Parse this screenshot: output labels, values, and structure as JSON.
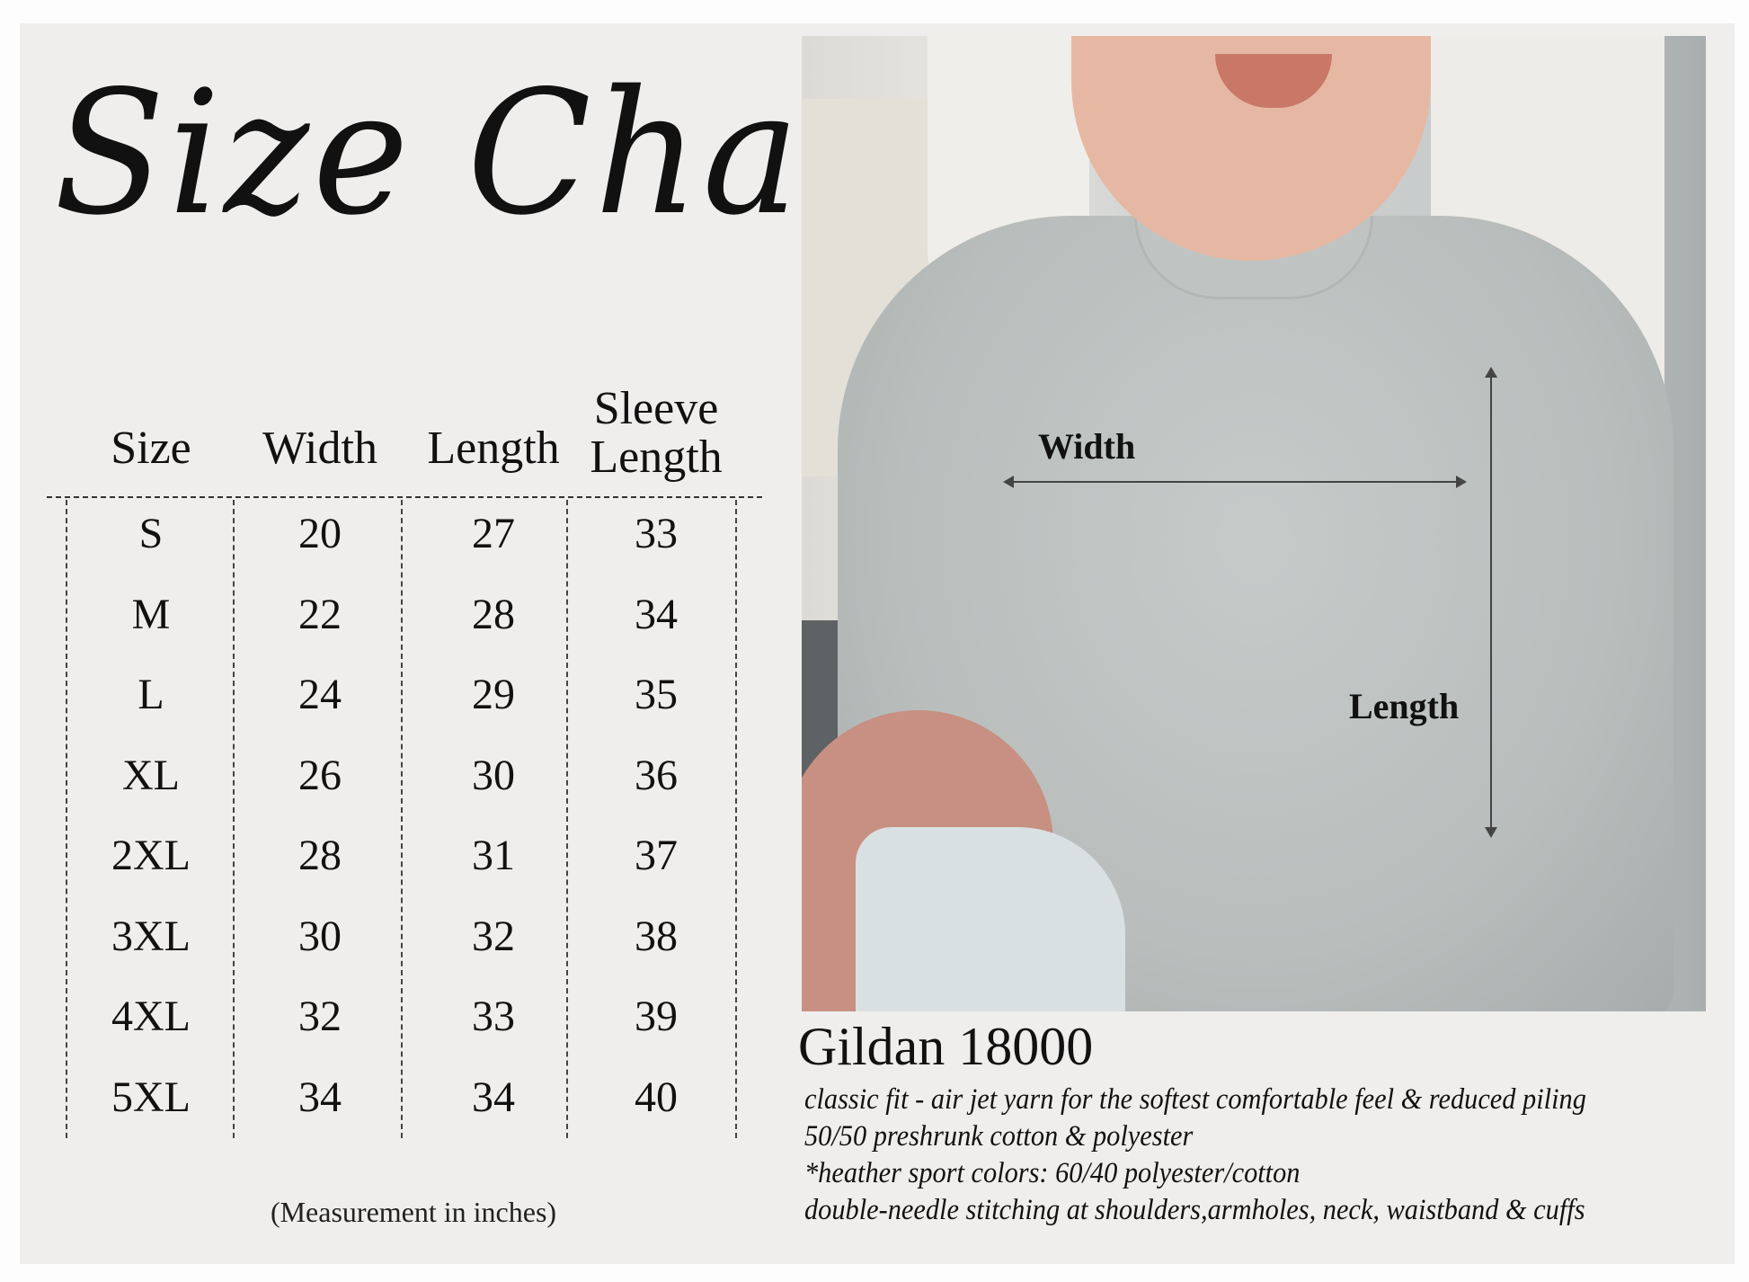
{
  "title": "Size Chart",
  "table": {
    "headers": [
      "Size",
      "Width",
      "Length",
      "Sleeve Length"
    ],
    "header_sleeve_top": "Sleeve",
    "header_sleeve_bottom": "Length",
    "rows": [
      [
        "S",
        "20",
        "27",
        "33"
      ],
      [
        "M",
        "22",
        "28",
        "34"
      ],
      [
        "L",
        "24",
        "29",
        "35"
      ],
      [
        "XL",
        "26",
        "30",
        "36"
      ],
      [
        "2XL",
        "28",
        "31",
        "37"
      ],
      [
        "3XL",
        "30",
        "32",
        "38"
      ],
      [
        "4XL",
        "32",
        "33",
        "39"
      ],
      [
        "5XL",
        "34",
        "34",
        "40"
      ]
    ]
  },
  "note": "(Measurement in inches)",
  "photo": {
    "width_label": "Width",
    "length_label": "Length"
  },
  "product": {
    "model": "Gildan 18000",
    "lines": [
      "classic fit - air jet yarn for the softest comfortable feel & reduced piling",
      "50/50 preshrunk cotton & polyester",
      "*heather sport colors: 60/40 polyester/cotton",
      "double-needle stitching at shoulders,armholes, neck, waistband & cuffs"
    ]
  }
}
